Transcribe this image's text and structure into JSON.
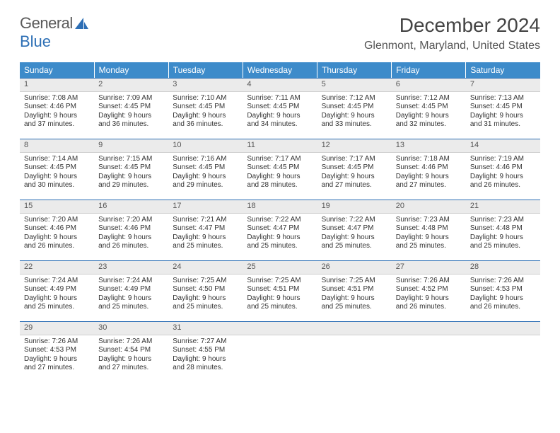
{
  "branding": {
    "word1": "General",
    "word2": "Blue",
    "logo_fill": "#2d6fb5"
  },
  "header": {
    "month_title": "December 2024",
    "location": "Glenmont, Maryland, United States"
  },
  "styling": {
    "header_bg": "#3d8bca",
    "header_text": "#ffffff",
    "daynum_bg": "#ebebeb",
    "daynum_border_top": "#2d6fb5",
    "body_text": "#333333",
    "title_fontsize": 28,
    "location_fontsize": 16,
    "cell_fontsize": 10
  },
  "weekdays": [
    "Sunday",
    "Monday",
    "Tuesday",
    "Wednesday",
    "Thursday",
    "Friday",
    "Saturday"
  ],
  "weeks": [
    [
      {
        "n": "1",
        "sr": "Sunrise: 7:08 AM",
        "ss": "Sunset: 4:46 PM",
        "d1": "Daylight: 9 hours",
        "d2": "and 37 minutes."
      },
      {
        "n": "2",
        "sr": "Sunrise: 7:09 AM",
        "ss": "Sunset: 4:45 PM",
        "d1": "Daylight: 9 hours",
        "d2": "and 36 minutes."
      },
      {
        "n": "3",
        "sr": "Sunrise: 7:10 AM",
        "ss": "Sunset: 4:45 PM",
        "d1": "Daylight: 9 hours",
        "d2": "and 36 minutes."
      },
      {
        "n": "4",
        "sr": "Sunrise: 7:11 AM",
        "ss": "Sunset: 4:45 PM",
        "d1": "Daylight: 9 hours",
        "d2": "and 34 minutes."
      },
      {
        "n": "5",
        "sr": "Sunrise: 7:12 AM",
        "ss": "Sunset: 4:45 PM",
        "d1": "Daylight: 9 hours",
        "d2": "and 33 minutes."
      },
      {
        "n": "6",
        "sr": "Sunrise: 7:12 AM",
        "ss": "Sunset: 4:45 PM",
        "d1": "Daylight: 9 hours",
        "d2": "and 32 minutes."
      },
      {
        "n": "7",
        "sr": "Sunrise: 7:13 AM",
        "ss": "Sunset: 4:45 PM",
        "d1": "Daylight: 9 hours",
        "d2": "and 31 minutes."
      }
    ],
    [
      {
        "n": "8",
        "sr": "Sunrise: 7:14 AM",
        "ss": "Sunset: 4:45 PM",
        "d1": "Daylight: 9 hours",
        "d2": "and 30 minutes."
      },
      {
        "n": "9",
        "sr": "Sunrise: 7:15 AM",
        "ss": "Sunset: 4:45 PM",
        "d1": "Daylight: 9 hours",
        "d2": "and 29 minutes."
      },
      {
        "n": "10",
        "sr": "Sunrise: 7:16 AM",
        "ss": "Sunset: 4:45 PM",
        "d1": "Daylight: 9 hours",
        "d2": "and 29 minutes."
      },
      {
        "n": "11",
        "sr": "Sunrise: 7:17 AM",
        "ss": "Sunset: 4:45 PM",
        "d1": "Daylight: 9 hours",
        "d2": "and 28 minutes."
      },
      {
        "n": "12",
        "sr": "Sunrise: 7:17 AM",
        "ss": "Sunset: 4:45 PM",
        "d1": "Daylight: 9 hours",
        "d2": "and 27 minutes."
      },
      {
        "n": "13",
        "sr": "Sunrise: 7:18 AM",
        "ss": "Sunset: 4:46 PM",
        "d1": "Daylight: 9 hours",
        "d2": "and 27 minutes."
      },
      {
        "n": "14",
        "sr": "Sunrise: 7:19 AM",
        "ss": "Sunset: 4:46 PM",
        "d1": "Daylight: 9 hours",
        "d2": "and 26 minutes."
      }
    ],
    [
      {
        "n": "15",
        "sr": "Sunrise: 7:20 AM",
        "ss": "Sunset: 4:46 PM",
        "d1": "Daylight: 9 hours",
        "d2": "and 26 minutes."
      },
      {
        "n": "16",
        "sr": "Sunrise: 7:20 AM",
        "ss": "Sunset: 4:46 PM",
        "d1": "Daylight: 9 hours",
        "d2": "and 26 minutes."
      },
      {
        "n": "17",
        "sr": "Sunrise: 7:21 AM",
        "ss": "Sunset: 4:47 PM",
        "d1": "Daylight: 9 hours",
        "d2": "and 25 minutes."
      },
      {
        "n": "18",
        "sr": "Sunrise: 7:22 AM",
        "ss": "Sunset: 4:47 PM",
        "d1": "Daylight: 9 hours",
        "d2": "and 25 minutes."
      },
      {
        "n": "19",
        "sr": "Sunrise: 7:22 AM",
        "ss": "Sunset: 4:47 PM",
        "d1": "Daylight: 9 hours",
        "d2": "and 25 minutes."
      },
      {
        "n": "20",
        "sr": "Sunrise: 7:23 AM",
        "ss": "Sunset: 4:48 PM",
        "d1": "Daylight: 9 hours",
        "d2": "and 25 minutes."
      },
      {
        "n": "21",
        "sr": "Sunrise: 7:23 AM",
        "ss": "Sunset: 4:48 PM",
        "d1": "Daylight: 9 hours",
        "d2": "and 25 minutes."
      }
    ],
    [
      {
        "n": "22",
        "sr": "Sunrise: 7:24 AM",
        "ss": "Sunset: 4:49 PM",
        "d1": "Daylight: 9 hours",
        "d2": "and 25 minutes."
      },
      {
        "n": "23",
        "sr": "Sunrise: 7:24 AM",
        "ss": "Sunset: 4:49 PM",
        "d1": "Daylight: 9 hours",
        "d2": "and 25 minutes."
      },
      {
        "n": "24",
        "sr": "Sunrise: 7:25 AM",
        "ss": "Sunset: 4:50 PM",
        "d1": "Daylight: 9 hours",
        "d2": "and 25 minutes."
      },
      {
        "n": "25",
        "sr": "Sunrise: 7:25 AM",
        "ss": "Sunset: 4:51 PM",
        "d1": "Daylight: 9 hours",
        "d2": "and 25 minutes."
      },
      {
        "n": "26",
        "sr": "Sunrise: 7:25 AM",
        "ss": "Sunset: 4:51 PM",
        "d1": "Daylight: 9 hours",
        "d2": "and 25 minutes."
      },
      {
        "n": "27",
        "sr": "Sunrise: 7:26 AM",
        "ss": "Sunset: 4:52 PM",
        "d1": "Daylight: 9 hours",
        "d2": "and 26 minutes."
      },
      {
        "n": "28",
        "sr": "Sunrise: 7:26 AM",
        "ss": "Sunset: 4:53 PM",
        "d1": "Daylight: 9 hours",
        "d2": "and 26 minutes."
      }
    ],
    [
      {
        "n": "29",
        "sr": "Sunrise: 7:26 AM",
        "ss": "Sunset: 4:53 PM",
        "d1": "Daylight: 9 hours",
        "d2": "and 27 minutes."
      },
      {
        "n": "30",
        "sr": "Sunrise: 7:26 AM",
        "ss": "Sunset: 4:54 PM",
        "d1": "Daylight: 9 hours",
        "d2": "and 27 minutes."
      },
      {
        "n": "31",
        "sr": "Sunrise: 7:27 AM",
        "ss": "Sunset: 4:55 PM",
        "d1": "Daylight: 9 hours",
        "d2": "and 28 minutes."
      },
      {
        "n": "",
        "sr": "",
        "ss": "",
        "d1": "",
        "d2": ""
      },
      {
        "n": "",
        "sr": "",
        "ss": "",
        "d1": "",
        "d2": ""
      },
      {
        "n": "",
        "sr": "",
        "ss": "",
        "d1": "",
        "d2": ""
      },
      {
        "n": "",
        "sr": "",
        "ss": "",
        "d1": "",
        "d2": ""
      }
    ]
  ]
}
